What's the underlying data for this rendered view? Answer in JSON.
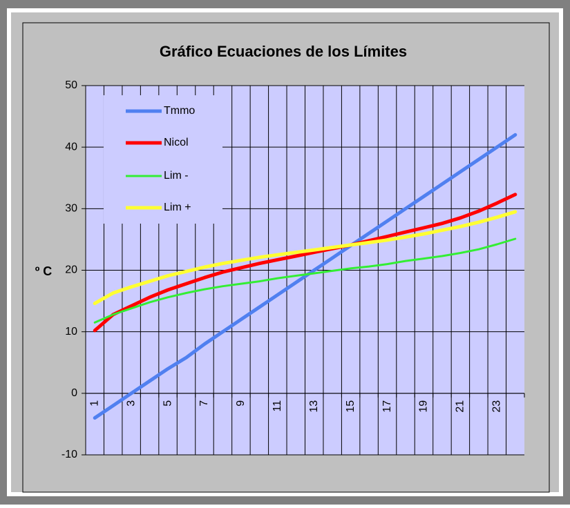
{
  "chart_data": {
    "type": "line",
    "title": "Gráfico Ecuaciones de los Límites",
    "y_label": "º C",
    "categories": [
      1,
      null,
      3,
      null,
      5,
      null,
      7,
      null,
      9,
      null,
      11,
      null,
      13,
      null,
      15,
      null,
      17,
      null,
      19,
      null,
      21,
      null,
      23,
      null
    ],
    "series": [
      {
        "name": "Tmmo",
        "color": "#5080f0",
        "values": [
          -4,
          -2,
          0,
          2,
          4,
          5.8,
          8,
          10,
          12,
          14,
          16,
          18,
          20,
          22,
          24,
          26,
          28,
          30,
          32,
          34,
          36,
          38,
          40,
          42
        ]
      },
      {
        "name": "Nicol",
        "color": "#ff0000",
        "values": [
          10.2,
          12.8,
          14.2,
          15.6,
          16.8,
          17.8,
          18.8,
          19.7,
          20.4,
          21.1,
          21.7,
          22.3,
          22.9,
          23.5,
          24.1,
          24.8,
          25.5,
          26.2,
          26.9,
          27.6,
          28.5,
          29.6,
          30.9,
          32.3
        ]
      },
      {
        "name": "Lim -",
        "color": "#33ee33",
        "values": [
          11.5,
          12.8,
          13.8,
          14.8,
          15.6,
          16.3,
          16.9,
          17.4,
          17.8,
          18.2,
          18.7,
          19.1,
          19.5,
          19.9,
          20.3,
          20.6,
          21.0,
          21.5,
          21.9,
          22.3,
          22.8,
          23.4,
          24.2,
          25.1
        ]
      },
      {
        "name": "Lim +",
        "color": "#ffff33",
        "values": [
          14.6,
          16.3,
          17.3,
          18.2,
          19.1,
          19.8,
          20.5,
          21.1,
          21.6,
          22.1,
          22.5,
          22.9,
          23.3,
          23.7,
          24.1,
          24.5,
          24.9,
          25.4,
          25.9,
          26.5,
          27.1,
          27.8,
          28.6,
          29.5
        ]
      }
    ],
    "ylim": [
      -10,
      50
    ],
    "yticks": [
      -10,
      0,
      10,
      20,
      30,
      40,
      50
    ],
    "grid": true,
    "legend": "top-left"
  }
}
